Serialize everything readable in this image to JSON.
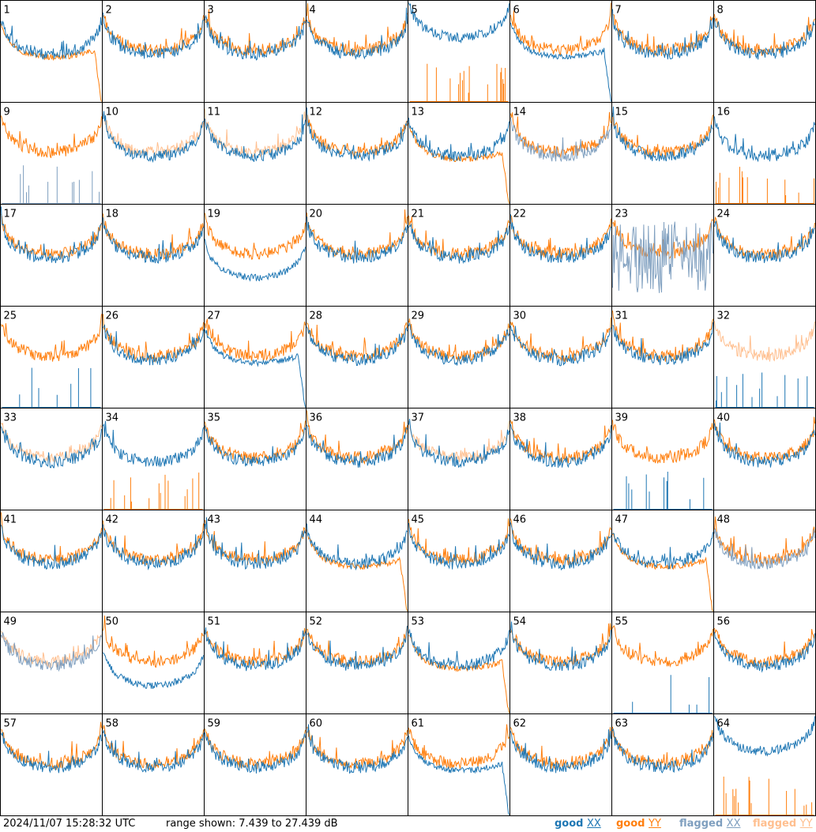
{
  "footer": {
    "timestamp": "2024/11/07 15:28:32 UTC",
    "range": "range shown: 7.439 to 27.439 dB"
  },
  "legend": [
    {
      "key": "good",
      "pol": "XX",
      "color": "#1f77b4"
    },
    {
      "key": "good",
      "pol": "YY",
      "color": "#ff7f0e"
    },
    {
      "key": "flagged",
      "pol": "XX",
      "color": "#7f9fbf"
    },
    {
      "key": "flagged",
      "pol": "YY",
      "color": "#ffbf8f"
    }
  ],
  "chart_data": {
    "type": "line",
    "ylim_db": [
      7.439,
      27.439
    ],
    "grid": {
      "rows": 8,
      "cols": 8
    },
    "panels": [
      {
        "id": "1",
        "xx": "good",
        "yy": "good",
        "xx_shape": "normal",
        "yy_shape": "droop"
      },
      {
        "id": "2",
        "xx": "good",
        "yy": "good"
      },
      {
        "id": "3",
        "xx": "good",
        "yy": "good"
      },
      {
        "id": "4",
        "xx": "good",
        "yy": "good"
      },
      {
        "id": "5",
        "xx": "good",
        "yy": "good",
        "yy_shape": "spikes",
        "xx_shape": "high"
      },
      {
        "id": "6",
        "xx": "good",
        "yy": "good",
        "xx_shape": "droop"
      },
      {
        "id": "7",
        "xx": "good",
        "yy": "good"
      },
      {
        "id": "8",
        "xx": "good",
        "yy": "good"
      },
      {
        "id": "9",
        "xx": "flagged",
        "yy": "good",
        "xx_shape": "spikes"
      },
      {
        "id": "10",
        "xx": "good",
        "yy": "flagged"
      },
      {
        "id": "11",
        "xx": "good",
        "yy": "flagged"
      },
      {
        "id": "12",
        "xx": "good",
        "yy": "good"
      },
      {
        "id": "13",
        "xx": "good",
        "yy": "good",
        "yy_shape": "droop"
      },
      {
        "id": "14",
        "xx": "flagged",
        "yy": "good"
      },
      {
        "id": "15",
        "xx": "good",
        "yy": "good"
      },
      {
        "id": "16",
        "xx": "good",
        "yy": "good",
        "yy_shape": "spikes"
      },
      {
        "id": "17",
        "xx": "good",
        "yy": "good"
      },
      {
        "id": "18",
        "xx": "good",
        "yy": "good"
      },
      {
        "id": "19",
        "xx": "good",
        "yy": "good",
        "xx_shape": "low"
      },
      {
        "id": "20",
        "xx": "good",
        "yy": "good"
      },
      {
        "id": "21",
        "xx": "good",
        "yy": "good"
      },
      {
        "id": "22",
        "xx": "good",
        "yy": "good"
      },
      {
        "id": "23",
        "xx": "flagged",
        "yy": "good",
        "xx_shape": "noisy"
      },
      {
        "id": "24",
        "xx": "good",
        "yy": "good"
      },
      {
        "id": "25",
        "xx": "good",
        "yy": "good",
        "xx_shape": "spikes"
      },
      {
        "id": "26",
        "xx": "good",
        "yy": "good"
      },
      {
        "id": "27",
        "xx": "good",
        "yy": "good",
        "xx_shape": "droop"
      },
      {
        "id": "28",
        "xx": "good",
        "yy": "good"
      },
      {
        "id": "29",
        "xx": "good",
        "yy": "good"
      },
      {
        "id": "30",
        "xx": "good",
        "yy": "good"
      },
      {
        "id": "31",
        "xx": "good",
        "yy": "good"
      },
      {
        "id": "32",
        "xx": "good",
        "yy": "flagged",
        "xx_shape": "spikes"
      },
      {
        "id": "33",
        "xx": "good",
        "yy": "flagged"
      },
      {
        "id": "34",
        "xx": "good",
        "yy": "good",
        "yy_shape": "spikes"
      },
      {
        "id": "35",
        "xx": "good",
        "yy": "good"
      },
      {
        "id": "36",
        "xx": "good",
        "yy": "good"
      },
      {
        "id": "37",
        "xx": "good",
        "yy": "flagged"
      },
      {
        "id": "38",
        "xx": "good",
        "yy": "good"
      },
      {
        "id": "39",
        "xx": "good",
        "yy": "good",
        "xx_shape": "spikes"
      },
      {
        "id": "40",
        "xx": "good",
        "yy": "good"
      },
      {
        "id": "41",
        "xx": "good",
        "yy": "good"
      },
      {
        "id": "42",
        "xx": "good",
        "yy": "good"
      },
      {
        "id": "43",
        "xx": "good",
        "yy": "good"
      },
      {
        "id": "44",
        "xx": "good",
        "yy": "good",
        "yy_shape": "droop"
      },
      {
        "id": "45",
        "xx": "good",
        "yy": "good"
      },
      {
        "id": "46",
        "xx": "good",
        "yy": "good"
      },
      {
        "id": "47",
        "xx": "good",
        "yy": "good",
        "yy_shape": "droop"
      },
      {
        "id": "48",
        "xx": "flagged",
        "yy": "good"
      },
      {
        "id": "49",
        "xx": "flagged",
        "yy": "flagged"
      },
      {
        "id": "50",
        "xx": "good",
        "yy": "good",
        "xx_shape": "low"
      },
      {
        "id": "51",
        "xx": "good",
        "yy": "good"
      },
      {
        "id": "52",
        "xx": "good",
        "yy": "good"
      },
      {
        "id": "53",
        "xx": "good",
        "yy": "good",
        "yy_shape": "droop"
      },
      {
        "id": "54",
        "xx": "good",
        "yy": "good"
      },
      {
        "id": "55",
        "xx": "good",
        "yy": "good",
        "xx_shape": "spikes"
      },
      {
        "id": "56",
        "xx": "good",
        "yy": "good"
      },
      {
        "id": "57",
        "xx": "good",
        "yy": "good"
      },
      {
        "id": "58",
        "xx": "good",
        "yy": "good"
      },
      {
        "id": "59",
        "xx": "good",
        "yy": "good"
      },
      {
        "id": "60",
        "xx": "good",
        "yy": "good"
      },
      {
        "id": "61",
        "xx": "good",
        "yy": "good",
        "xx_shape": "droop"
      },
      {
        "id": "62",
        "xx": "good",
        "yy": "good"
      },
      {
        "id": "63",
        "xx": "good",
        "yy": "good"
      },
      {
        "id": "64",
        "xx": "good",
        "yy": "good",
        "yy_shape": "spikes",
        "xx_shape": "high"
      }
    ]
  }
}
